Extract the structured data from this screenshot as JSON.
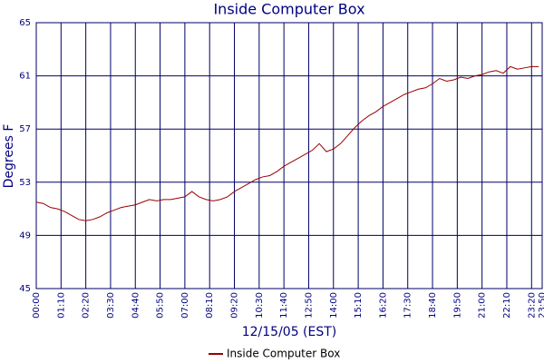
{
  "chart_data": {
    "type": "line",
    "title": "Inside Computer Box",
    "x_label": "12/15/05 (EST)",
    "y_label": "Degrees F",
    "x": [
      0,
      20,
      40,
      60,
      80,
      100,
      120,
      140,
      160,
      180,
      200,
      220,
      240,
      260,
      280,
      300,
      320,
      340,
      360,
      380,
      400,
      420,
      440,
      460,
      480,
      500,
      520,
      540,
      560,
      580,
      600,
      620,
      640,
      660,
      680,
      700,
      720,
      740,
      760,
      780,
      800,
      820,
      840,
      860,
      880,
      900,
      920,
      940,
      960,
      980,
      1000,
      1020,
      1040,
      1060,
      1080,
      1100,
      1120,
      1140,
      1160,
      1180,
      1200,
      1220,
      1240,
      1260,
      1280,
      1300,
      1320,
      1340,
      1360,
      1380,
      1400,
      1420
    ],
    "series": [
      {
        "name": "Inside Computer Box",
        "color": "#990000",
        "values": [
          51.5,
          51.4,
          51.1,
          51.0,
          50.8,
          50.5,
          50.2,
          50.1,
          50.2,
          50.4,
          50.7,
          50.9,
          51.1,
          51.2,
          51.3,
          51.5,
          51.7,
          51.6,
          51.7,
          51.7,
          51.8,
          51.9,
          52.3,
          51.9,
          51.7,
          51.6,
          51.7,
          51.9,
          52.3,
          52.6,
          52.9,
          53.2,
          53.4,
          53.5,
          53.8,
          54.2,
          54.5,
          54.8,
          55.1,
          55.4,
          55.9,
          55.3,
          55.5,
          55.9,
          56.5,
          57.1,
          57.6,
          58.0,
          58.3,
          58.7,
          59.0,
          59.3,
          59.6,
          59.8,
          60.0,
          60.1,
          60.4,
          60.8,
          60.6,
          60.7,
          60.9,
          60.8,
          61.0,
          61.1,
          61.3,
          61.4,
          61.2,
          61.7,
          61.5,
          61.6,
          61.7,
          61.7
        ]
      }
    ],
    "xlim": [
      0,
      1430
    ],
    "xticks": [
      {
        "value": 0,
        "label": "00:00"
      },
      {
        "value": 70,
        "label": "01:10"
      },
      {
        "value": 140,
        "label": "02:20"
      },
      {
        "value": 210,
        "label": "03:30"
      },
      {
        "value": 280,
        "label": "04:40"
      },
      {
        "value": 350,
        "label": "05:50"
      },
      {
        "value": 420,
        "label": "07:00"
      },
      {
        "value": 490,
        "label": "08:10"
      },
      {
        "value": 560,
        "label": "09:20"
      },
      {
        "value": 630,
        "label": "10:30"
      },
      {
        "value": 700,
        "label": "11:40"
      },
      {
        "value": 770,
        "label": "12:50"
      },
      {
        "value": 840,
        "label": "14:00"
      },
      {
        "value": 910,
        "label": "15:10"
      },
      {
        "value": 980,
        "label": "16:20"
      },
      {
        "value": 1050,
        "label": "17:30"
      },
      {
        "value": 1120,
        "label": "18:40"
      },
      {
        "value": 1190,
        "label": "19:50"
      },
      {
        "value": 1260,
        "label": "21:00"
      },
      {
        "value": 1330,
        "label": "22:10"
      },
      {
        "value": 1400,
        "label": "23:20"
      },
      {
        "value": 1430,
        "label": "23:50"
      }
    ],
    "ylim": [
      45,
      65
    ],
    "yticks": [
      45,
      49,
      53,
      57,
      61,
      65
    ],
    "grid": true,
    "legend": "bottom"
  }
}
